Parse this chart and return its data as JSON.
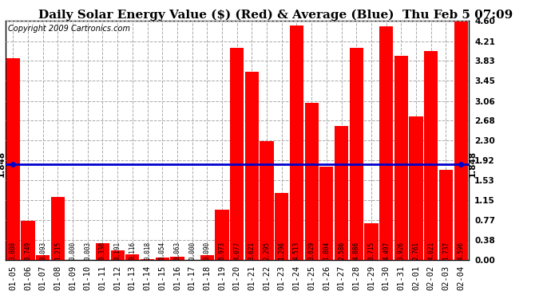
{
  "title": "Daily Solar Energy Value ($) (Red) & Average (Blue)  Thu Feb 5 07:09",
  "copyright": "Copyright 2009 Cartronics.com",
  "categories": [
    "01-05",
    "01-06",
    "01-07",
    "01-08",
    "01-09",
    "01-10",
    "01-11",
    "01-12",
    "01-13",
    "01-14",
    "01-15",
    "01-16",
    "01-17",
    "01-18",
    "01-19",
    "01-20",
    "01-21",
    "01-22",
    "01-23",
    "01-24",
    "01-25",
    "01-26",
    "01-27",
    "01-28",
    "01-29",
    "01-30",
    "01-31",
    "02-01",
    "02-02",
    "02-03",
    "02-04"
  ],
  "values": [
    3.888,
    0.749,
    0.093,
    1.215,
    0.0,
    0.003,
    0.33,
    0.191,
    0.116,
    0.018,
    0.054,
    0.063,
    0.0,
    0.09,
    0.973,
    4.077,
    3.621,
    2.295,
    1.296,
    4.513,
    3.029,
    1.804,
    2.586,
    4.086,
    0.715,
    4.497,
    3.926,
    2.761,
    4.021,
    1.737,
    4.596
  ],
  "average": 1.848,
  "bar_color": "#ff0000",
  "avg_line_color": "#0000cd",
  "background_color": "#ffffff",
  "plot_bg_color": "#ffffff",
  "grid_color": "#aaaaaa",
  "ylim": [
    0.0,
    4.6
  ],
  "yticks": [
    0.0,
    0.38,
    0.77,
    1.15,
    1.53,
    1.92,
    2.3,
    2.68,
    3.06,
    3.45,
    3.83,
    4.21,
    4.6
  ],
  "title_fontsize": 11,
  "copyright_fontsize": 7,
  "tick_fontsize": 7.5,
  "value_fontsize": 5.5,
  "avg_label": "1.848"
}
